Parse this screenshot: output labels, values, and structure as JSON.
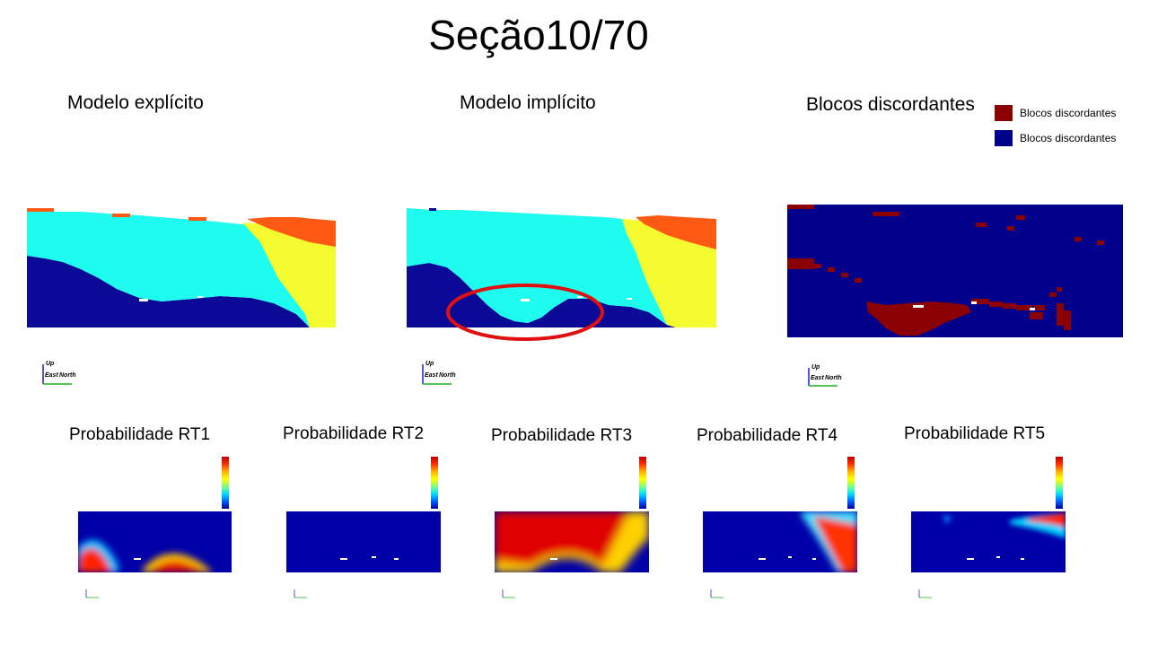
{
  "title": "Seção10/70",
  "panels": {
    "explicit_label": "Modelo explícito",
    "implicit_label": "Modelo implícito",
    "discord_label": "Blocos discordantes"
  },
  "legend": [
    {
      "label": "Blocos discordantes",
      "color": "#8b0000"
    },
    {
      "label": "Blocos discordantes",
      "color": "#00008b"
    }
  ],
  "axes_labels": {
    "up": "Up",
    "east": "East",
    "north": "North"
  },
  "probabilities": [
    {
      "label": "Probabilidade RT1"
    },
    {
      "label": "Probabilidade RT2"
    },
    {
      "label": "Probabilidade RT3"
    },
    {
      "label": "Probabilidade RT4"
    },
    {
      "label": "Probabilidade RT5"
    }
  ],
  "colors": {
    "dark_blue": "#0a0a96",
    "cyan": "#1dfcef",
    "yellow": "#f4fb2e",
    "orange": "#ff5a14",
    "dark_red": "#8b0000",
    "circle_red": "#e01010"
  }
}
